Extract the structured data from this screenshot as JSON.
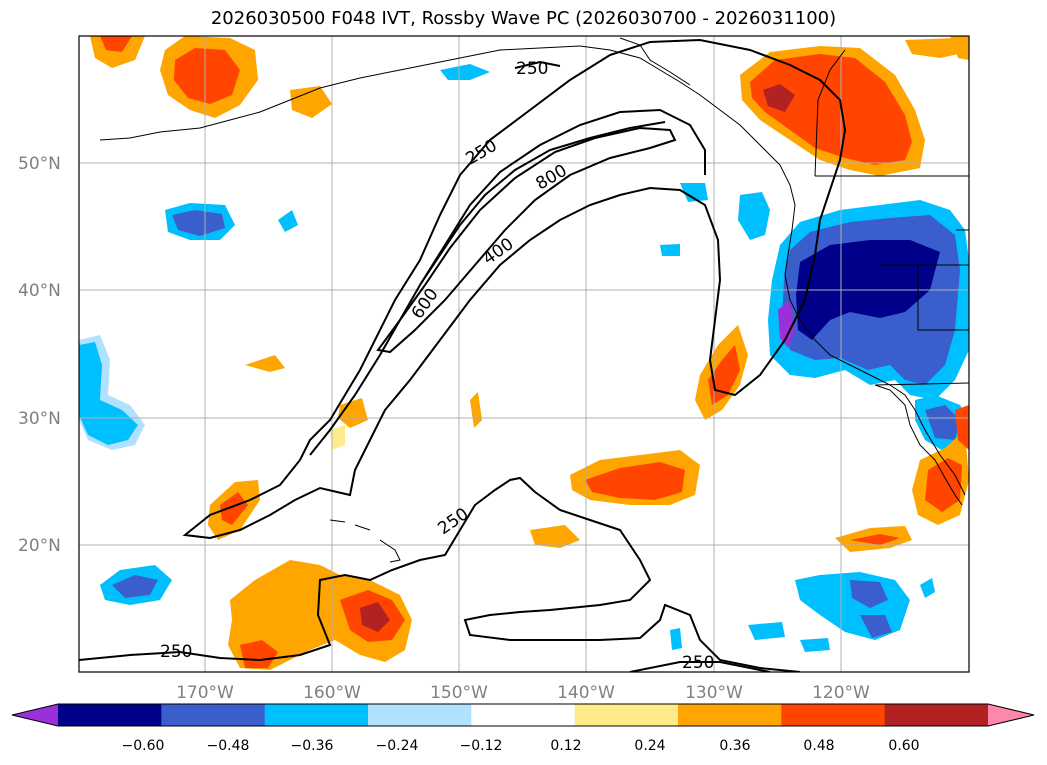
{
  "title": "2026030500 F048 IVT, Rossby Wave PC (2026030700 - 2026031100)",
  "map": {
    "lat_labels": [
      "50°N",
      "40°N",
      "30°N",
      "20°N"
    ],
    "lon_labels": [
      "170°W",
      "160°W",
      "150°W",
      "140°W",
      "130°W",
      "120°W"
    ],
    "contour_labels": [
      "250",
      "250",
      "800",
      "400",
      "600",
      "250",
      "250",
      "250"
    ]
  },
  "colorbar": {
    "ticks": [
      "−0.60",
      "−0.48",
      "−0.36",
      "−0.24",
      "−0.12",
      "0.12",
      "0.24",
      "0.36",
      "0.48",
      "0.60"
    ],
    "colors": [
      "#9b30d9",
      "#00008b",
      "#3a5fcd",
      "#00bfff",
      "#b0e2ff",
      "#ffffff",
      "#ffeb8c",
      "#ffa500",
      "#ff4500",
      "#b22222",
      "#ff88aa"
    ]
  }
}
